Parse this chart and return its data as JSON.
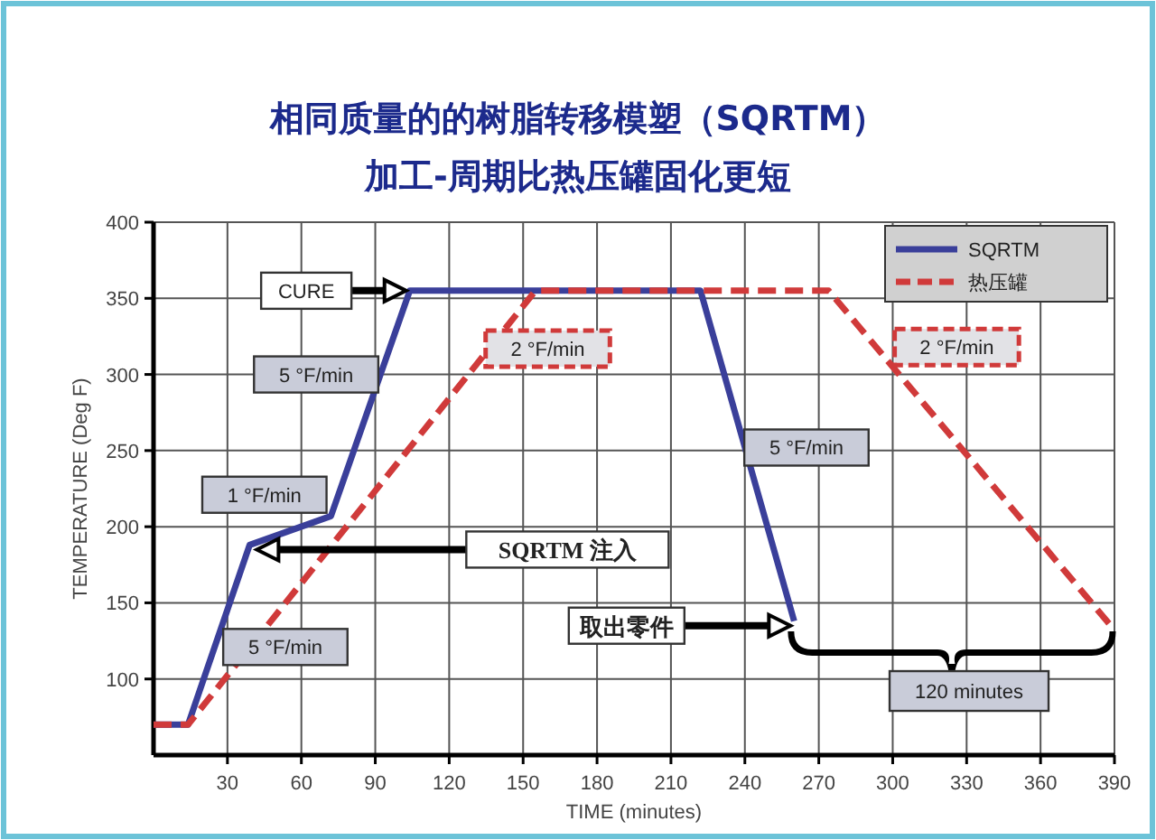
{
  "chart_data": {
    "type": "line",
    "title": "相同质量的的树脂转移模塑（SQRTM）",
    "subtitle": "加工-周期比热压罐固化更短",
    "xlabel": "TIME (minutes)",
    "ylabel": "TEMPERATURE (Deg F)",
    "xlim": [
      0,
      390
    ],
    "ylim": [
      50,
      400
    ],
    "xticks": [
      30,
      60,
      90,
      120,
      150,
      180,
      210,
      240,
      270,
      300,
      330,
      360,
      390
    ],
    "yticks": [
      100,
      150,
      200,
      250,
      300,
      350,
      400
    ],
    "grid": true,
    "legend": "top right",
    "series": [
      {
        "name": "SQRTM",
        "color": "#3a3f9a",
        "line_style": "solid",
        "x": [
          0,
          14,
          39,
          72,
          104,
          222,
          260
        ],
        "values": [
          70,
          70,
          188,
          207,
          355,
          355,
          138
        ]
      },
      {
        "name": "热压罐",
        "color": "#d03a3a",
        "line_style": "dashed",
        "x": [
          0,
          14,
          155,
          274,
          388
        ],
        "values": [
          70,
          70,
          355,
          355,
          136
        ]
      }
    ],
    "annotations": [
      "CURE",
      "5 °F/min",
      "1 °F/min",
      "5 °F/min",
      "2 °F/min",
      "2 °F/min",
      "5 °F/min",
      "SQRTM 注入",
      "取出零件",
      "120 minutes"
    ]
  }
}
